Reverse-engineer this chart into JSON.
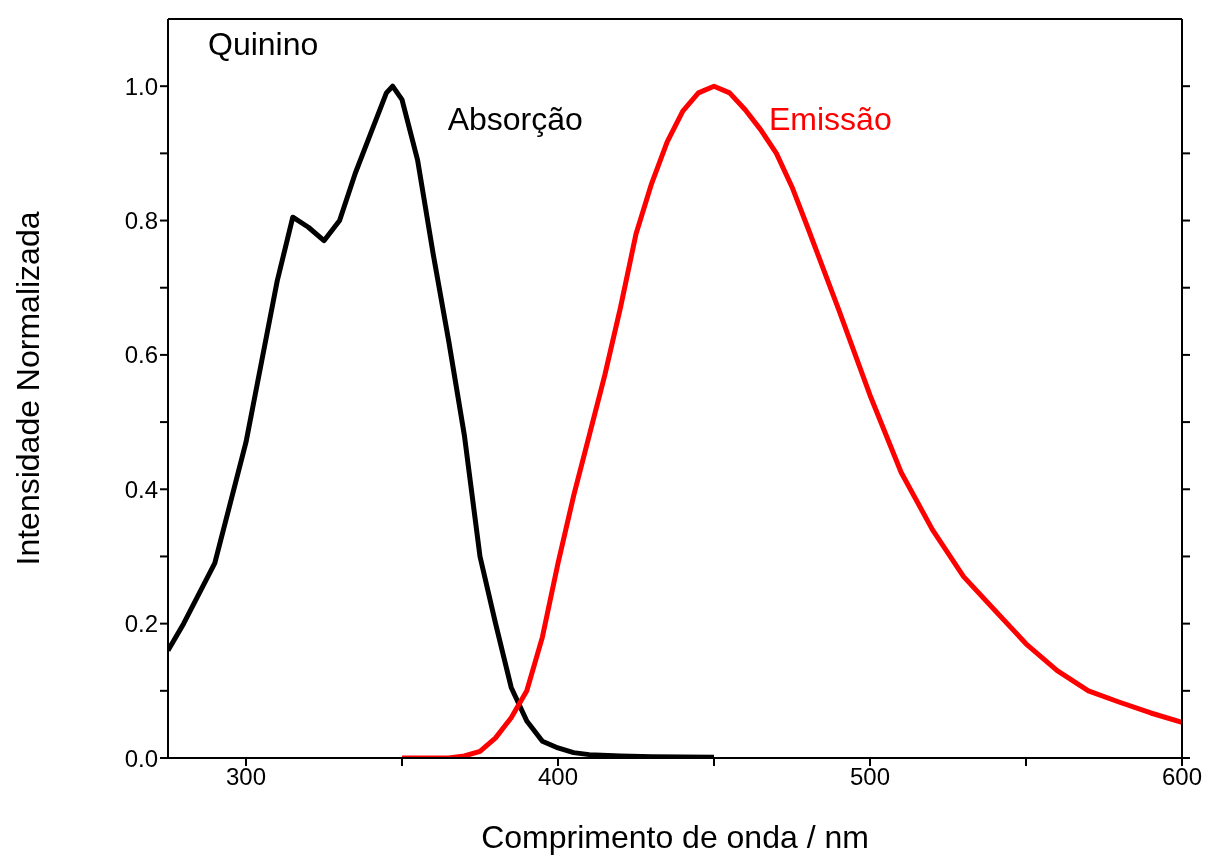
{
  "chart_data": {
    "type": "line",
    "title": "Quinino",
    "xlabel": "Comprimento de onda / nm",
    "ylabel": "Intensidade Normalizada",
    "xlim": [
      275,
      600
    ],
    "ylim": [
      0,
      1.1
    ],
    "xticks": [
      300,
      {
        "value": 350,
        "label": null
      },
      400,
      {
        "value": 450,
        "label": null
      },
      500,
      {
        "value": 550,
        "label": null
      },
      600
    ],
    "yticks": [
      {
        "value": 0,
        "label": "0.0"
      },
      {
        "value": 0.1,
        "label": null
      },
      {
        "value": 0.2,
        "label": "0.2"
      },
      {
        "value": 0.3,
        "label": null
      },
      {
        "value": 0.4,
        "label": "0.4"
      },
      {
        "value": 0.5,
        "label": null
      },
      {
        "value": 0.6,
        "label": "0.6"
      },
      {
        "value": 0.7,
        "label": null
      },
      {
        "value": 0.8,
        "label": "0.8"
      },
      {
        "value": 0.9,
        "label": null
      },
      {
        "value": 1,
        "label": "1.0"
      }
    ],
    "grid": false,
    "legend": false,
    "marker": "none",
    "line_style": "solid",
    "series": [
      {
        "name": "Absorção",
        "color": "#000000",
        "x": [
          275,
          280,
          290,
          300,
          305,
          310,
          315,
          320,
          325,
          330,
          335,
          340,
          345,
          347,
          350,
          355,
          360,
          365,
          370,
          375,
          380,
          385,
          390,
          395,
          400,
          405,
          410,
          420,
          430,
          450
        ],
        "values": [
          0.16,
          0.2,
          0.29,
          0.47,
          0.59,
          0.71,
          0.805,
          0.79,
          0.77,
          0.8,
          0.87,
          0.93,
          0.99,
          1.0,
          0.98,
          0.89,
          0.75,
          0.62,
          0.48,
          0.3,
          0.2,
          0.105,
          0.055,
          0.025,
          0.015,
          0.008,
          0.005,
          0.003,
          0.002,
          0.001
        ]
      },
      {
        "name": "Emissão",
        "color": "#ff0000",
        "x": [
          350,
          365,
          370,
          375,
          380,
          385,
          390,
          395,
          400,
          405,
          410,
          415,
          420,
          425,
          430,
          435,
          440,
          445,
          450,
          455,
          460,
          465,
          470,
          475,
          480,
          490,
          500,
          510,
          520,
          530,
          540,
          550,
          560,
          570,
          580,
          590,
          600
        ],
        "values": [
          0,
          0,
          0.003,
          0.01,
          0.03,
          0.06,
          0.1,
          0.18,
          0.29,
          0.39,
          0.48,
          0.57,
          0.67,
          0.78,
          0.855,
          0.917,
          0.963,
          0.99,
          1.0,
          0.99,
          0.965,
          0.935,
          0.9,
          0.85,
          0.79,
          0.667,
          0.54,
          0.425,
          0.34,
          0.27,
          0.22,
          0.17,
          0.13,
          0.1,
          0.083,
          0.067,
          0.053
        ]
      }
    ]
  }
}
